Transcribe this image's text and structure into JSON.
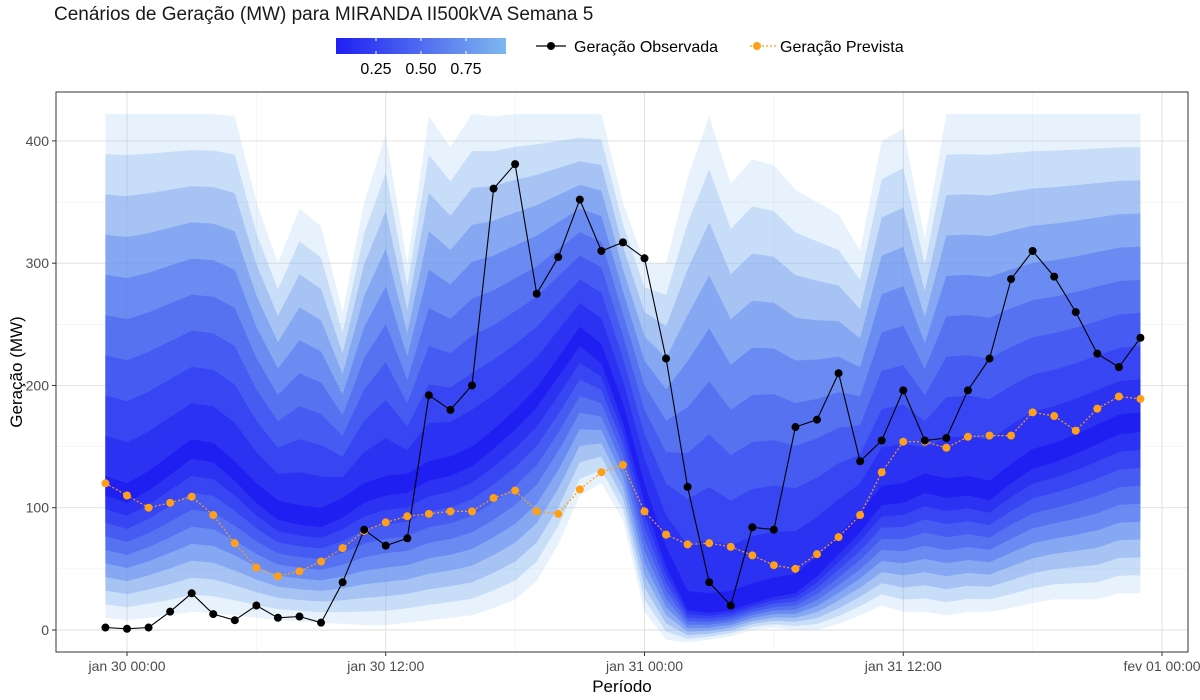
{
  "chart_data": {
    "type": "line",
    "title": "Cenários de Geração (MW) para MIRANDA II500kVA Semana 5",
    "xlabel": "Período",
    "ylabel": "Geração (MW)",
    "ylim": [
      -18,
      440
    ],
    "yticks": [
      0,
      100,
      200,
      300,
      400
    ],
    "xticks": [
      {
        "t": 0,
        "label": "jan 30 00:00"
      },
      {
        "t": 12,
        "label": "jan 30 12:00"
      },
      {
        "t": 24,
        "label": "jan 31 00:00"
      },
      {
        "t": 36,
        "label": "jan 31 12:00"
      },
      {
        "t": 48,
        "label": "fev 01 00:00"
      }
    ],
    "grid": true,
    "legend": {
      "position": "top",
      "gradient_labels": [
        "0.25",
        "0.50",
        "0.75"
      ],
      "gradient_colors": [
        "#1f1ff2",
        "#7fb8ee"
      ],
      "observed_label": "Geração Observada",
      "forecast_label": "Geração Prevista"
    },
    "colors": {
      "observed": "#000000",
      "forecast": "#ff9f1a",
      "band_dark": "#1f1ff2",
      "band_light": "#7fb8ee"
    },
    "x": [
      -1,
      0,
      1,
      2,
      3,
      4,
      5,
      6,
      7,
      8,
      9,
      10,
      11,
      12,
      13,
      14,
      15,
      16,
      17,
      18,
      19,
      20,
      21,
      22,
      23,
      24,
      25,
      26,
      27,
      28,
      29,
      30,
      31,
      32,
      33,
      34,
      35,
      36,
      37,
      38,
      39,
      40,
      41,
      42,
      43,
      44,
      45,
      46,
      47
    ],
    "series": [
      {
        "name": "Geração Observada",
        "values": [
          2,
          1,
          2,
          15,
          30,
          13,
          8,
          20,
          10,
          11,
          6,
          39,
          82,
          69,
          75,
          192,
          180,
          200,
          361,
          381,
          275,
          305,
          352,
          310,
          317,
          304,
          222,
          117,
          39,
          20,
          84,
          82,
          166,
          172,
          210,
          138,
          155,
          196,
          155,
          157,
          196,
          222,
          287,
          310,
          289,
          260,
          226,
          215,
          239
        ]
      },
      {
        "name": "Geração Prevista",
        "values": [
          120,
          110,
          100,
          104,
          109,
          94,
          71,
          51,
          44,
          48,
          56,
          67,
          81,
          88,
          93,
          95,
          97,
          97,
          108,
          114,
          97,
          95,
          115,
          129,
          135,
          97,
          78,
          70,
          71,
          68,
          61,
          53,
          50,
          62,
          76,
          94,
          129,
          154,
          154,
          149,
          158,
          159,
          159,
          178,
          175,
          163,
          181,
          191,
          189
        ]
      }
    ],
    "scenario_bands": {
      "median": [
        118,
        112,
        122,
        135,
        148,
        145,
        130,
        112,
        98,
        94,
        92,
        100,
        112,
        118,
        120,
        130,
        134,
        142,
        156,
        172,
        190,
        215,
        240,
        226,
        178,
        112,
        60,
        24,
        22,
        24,
        30,
        35,
        38,
        52,
        70,
        88,
        110,
        112,
        120,
        116,
        118,
        114,
        128,
        140,
        145,
        152,
        160,
        168,
        170
      ],
      "low": [
        10,
        8,
        10,
        12,
        15,
        14,
        12,
        10,
        8,
        7,
        6,
        5,
        4,
        4,
        6,
        8,
        10,
        12,
        18,
        25,
        40,
        70,
        110,
        120,
        90,
        15,
        -8,
        -10,
        -8,
        -5,
        0,
        2,
        0,
        0,
        5,
        12,
        20,
        15,
        15,
        12,
        15,
        15,
        18,
        22,
        25,
        25,
        25,
        30,
        30
      ],
      "high": [
        422,
        422,
        422,
        422,
        422,
        422,
        420,
        350,
        300,
        345,
        330,
        260,
        350,
        405,
        300,
        420,
        395,
        422,
        420,
        422,
        422,
        422,
        422,
        422,
        350,
        300,
        300,
        370,
        420,
        365,
        385,
        380,
        360,
        350,
        340,
        310,
        400,
        410,
        320,
        422,
        422,
        422,
        422,
        422,
        422,
        422,
        422,
        422,
        422
      ]
    }
  }
}
